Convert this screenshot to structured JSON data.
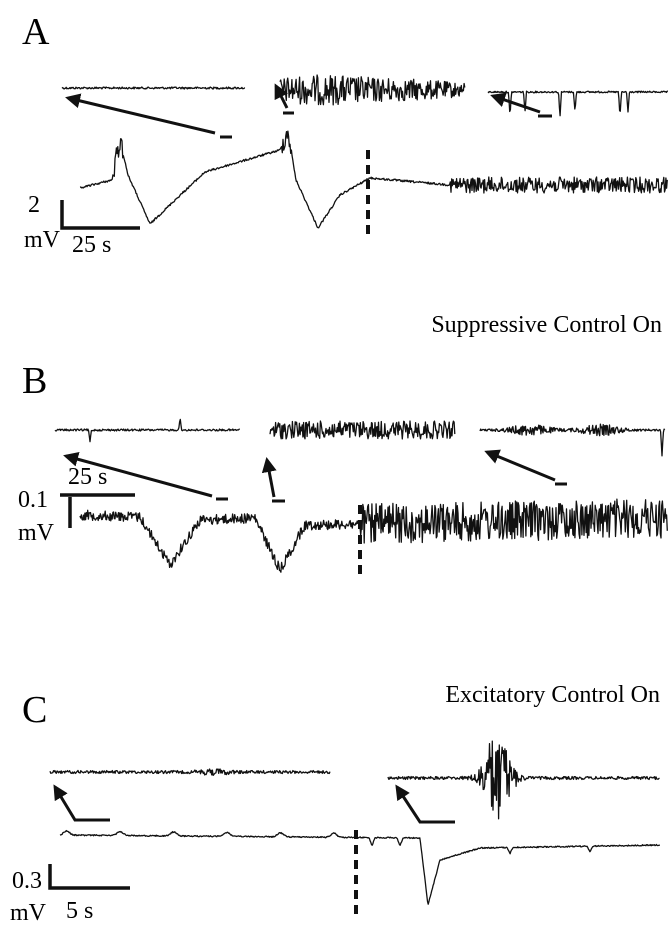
{
  "panels": [
    {
      "label": "A",
      "scale": {
        "amplitude": "2",
        "unit": "mV",
        "time": "25 s"
      }
    },
    {
      "label": "B",
      "annotation": "Suppressive Control On",
      "scale": {
        "amplitude": "0.1",
        "unit": "mV",
        "time": "25 s"
      }
    },
    {
      "label": "C",
      "annotation": "Excitatory Control On",
      "scale": {
        "amplitude": "0.3",
        "unit": "mV",
        "time": "5 s"
      }
    }
  ]
}
